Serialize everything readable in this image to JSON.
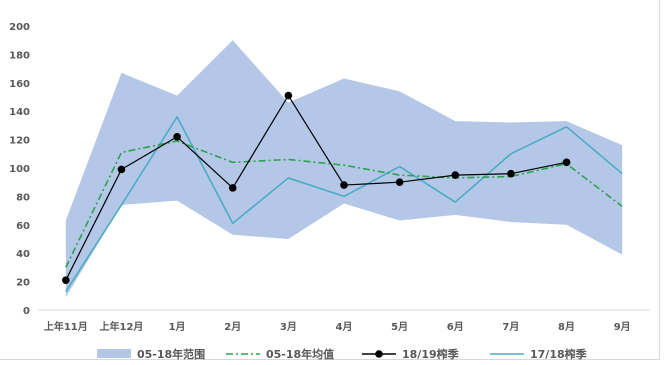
{
  "chart_data": {
    "type": "line",
    "title": "",
    "xlabel": "",
    "ylabel": "",
    "categories": [
      "上年11月",
      "上年12月",
      "1月",
      "2月",
      "3月",
      "4月",
      "5月",
      "6月",
      "7月",
      "8月",
      "9月"
    ],
    "ylim": [
      0,
      200
    ],
    "yticks": [
      0,
      20,
      40,
      60,
      80,
      100,
      120,
      140,
      160,
      180,
      200
    ],
    "grid": false,
    "legend_position": "bottom",
    "series": [
      {
        "name": "05-18年范围",
        "kind": "range",
        "color": "#b4c7e7",
        "lower": [
          9,
          74,
          77,
          53,
          50,
          75,
          63,
          67,
          62,
          60,
          39
        ],
        "upper": [
          63,
          167,
          151,
          190,
          146,
          163,
          154,
          133,
          132,
          133,
          116
        ]
      },
      {
        "name": "05-18年均值",
        "kind": "dashdot",
        "color": "#2ba24c",
        "values": [
          30,
          111,
          119,
          104,
          106,
          102,
          95,
          93,
          94,
          103,
          73
        ]
      },
      {
        "name": "18/19榨季",
        "kind": "marker-line",
        "color": "#000000",
        "values": [
          21,
          99,
          122,
          86,
          151,
          88,
          90,
          95,
          96,
          104,
          null
        ]
      },
      {
        "name": "17/18榨季",
        "kind": "line",
        "color": "#4aacc6",
        "values": [
          13,
          74,
          136,
          61,
          93,
          80,
          101,
          76,
          110,
          129,
          96
        ]
      }
    ]
  }
}
